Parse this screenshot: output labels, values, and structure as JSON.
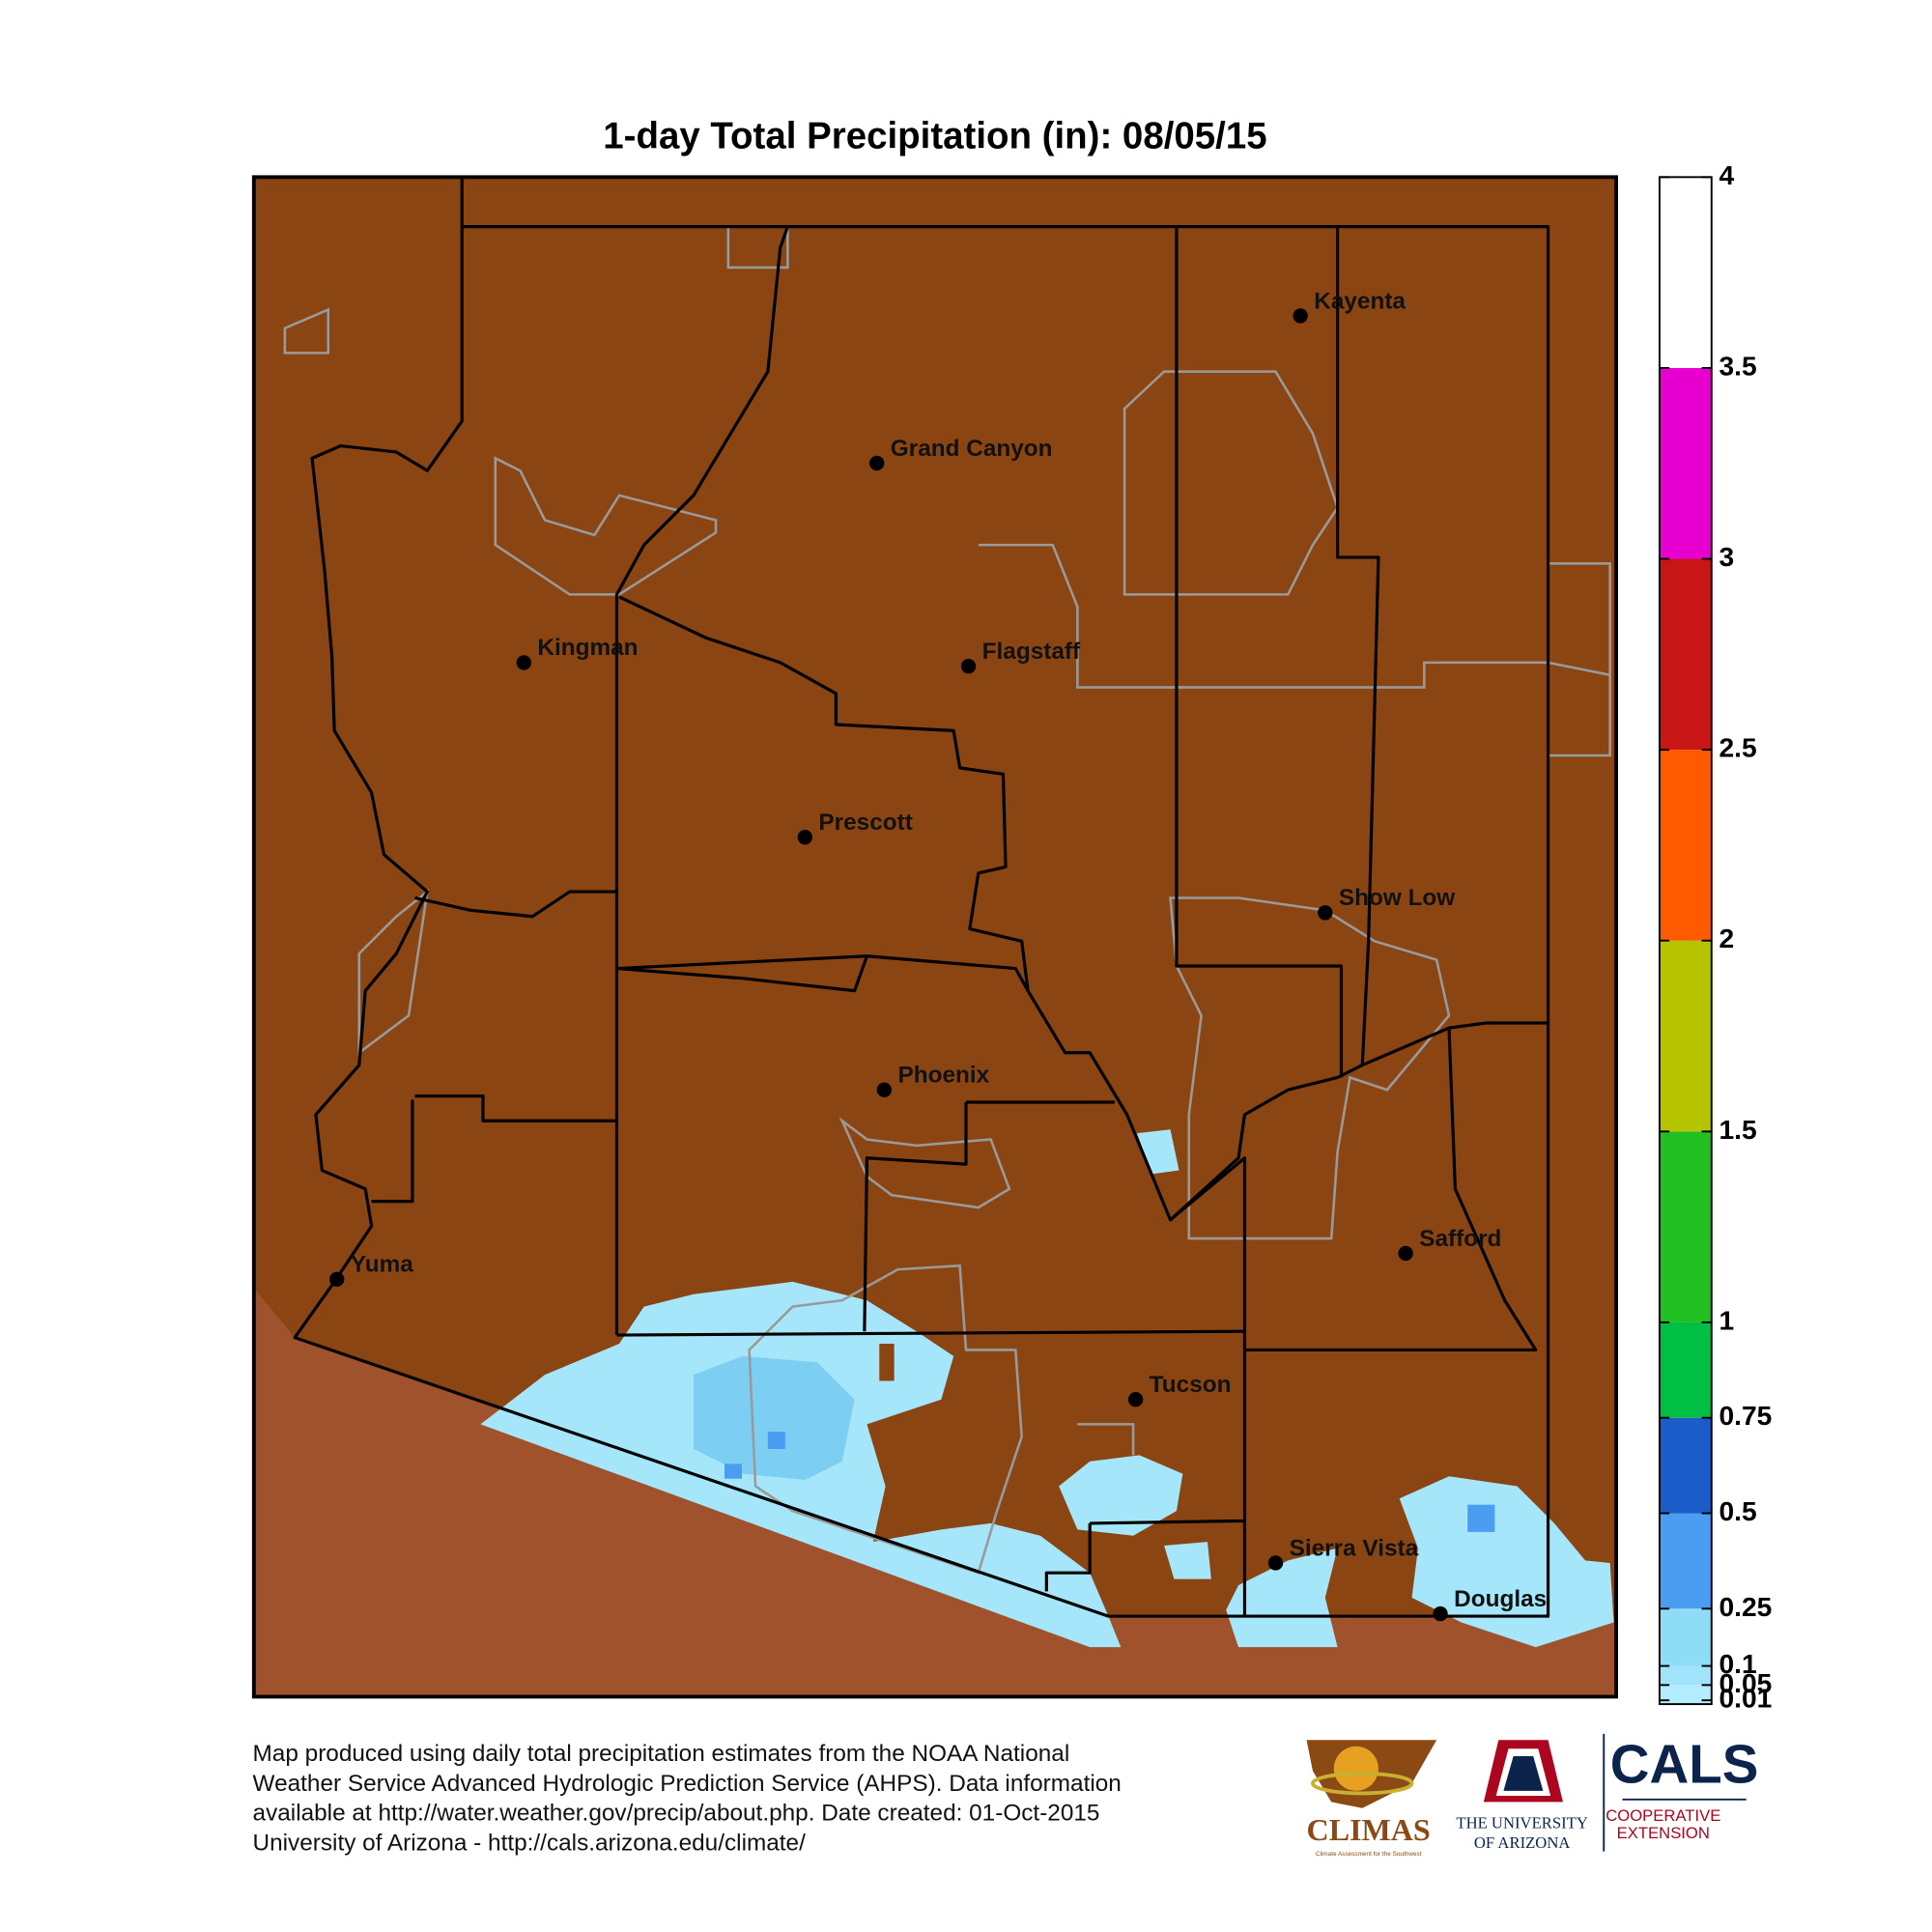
{
  "title": "1-day Total Precipitation (in): 08/05/15",
  "map": {
    "cities": [
      {
        "name": "Kayenta"
      },
      {
        "name": "Grand Canyon"
      },
      {
        "name": "Kingman"
      },
      {
        "name": "Flagstaff"
      },
      {
        "name": "Prescott"
      },
      {
        "name": "Show Low"
      },
      {
        "name": "Phoenix"
      },
      {
        "name": "Safford"
      },
      {
        "name": "Yuma"
      },
      {
        "name": "Tucson"
      },
      {
        "name": "Sierra Vista"
      },
      {
        "name": "Douglas"
      }
    ]
  },
  "colorbar": {
    "range": [
      0,
      4
    ],
    "ticks": [
      0.01,
      0.05,
      0.1,
      0.25,
      0.5,
      0.75,
      1,
      1.5,
      2,
      2.5,
      3,
      3.5,
      4
    ],
    "colors": [
      "#b4ecff",
      "#a0e4fc",
      "#8fdcf6",
      "#4a9df0",
      "#1c5cc8",
      "#00bf44",
      "#22c022",
      "#b6c400",
      "#ff5a00",
      "#c81616",
      "#e800d0",
      "#ffffff"
    ]
  },
  "footer": [
    "Map produced using daily total precipitation estimates from the NOAA National",
    "Weather Service Advanced Hydrologic Prediction Service (AHPS). Data information",
    "available at http://water.weather.gov/precip/about.php. Date created: 01-Oct-2015",
    "University of Arizona - http://cals.arizona.edu/climate/"
  ],
  "logos": {
    "climas": "CLIMAS",
    "climas_sub": "Climate Assessment for the Southwest",
    "ua": [
      "THE UNIVERSITY",
      "OF ARIZONA"
    ],
    "cals": "CALS",
    "cals_sub": [
      "COOPERATIVE",
      "EXTENSION"
    ]
  }
}
